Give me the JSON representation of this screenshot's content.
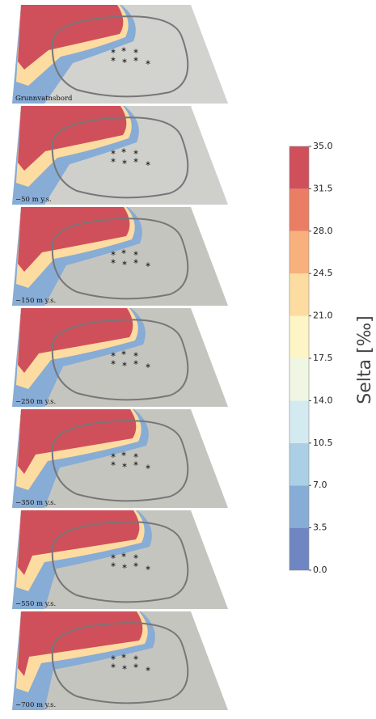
{
  "chart_data": {
    "type": "map-panels",
    "panels": [
      "Grunnvatnsbord",
      "−50 m y.s.",
      "−150 m y.s.",
      "−250 m y.s.",
      "−350 m y.s.",
      "−550 m y.s.",
      "−700 m y.s."
    ],
    "colorbar": {
      "label": "Selta [‰]",
      "lim": [
        0,
        35
      ],
      "ticks": [
        {
          "value": 0,
          "label": "0.0"
        },
        3.5,
        {
          "value": 7,
          "label": "7.0"
        },
        10.5,
        {
          "value": 14,
          "label": "14.0"
        },
        17.5,
        {
          "value": 21,
          "label": "21.0"
        },
        24.5,
        {
          "value": 28,
          "label": "28.0"
        },
        31.5,
        {
          "value": 35,
          "label": "35.0"
        }
      ],
      "colors": [
        "#6f86c3",
        "#87acd6",
        "#abcfe4",
        "#d3eaf0",
        "#eff6e4",
        "#fdf5c6",
        "#fddca1",
        "#f8b07d",
        "#ea7e65",
        "#cf505b"
      ]
    }
  }
}
